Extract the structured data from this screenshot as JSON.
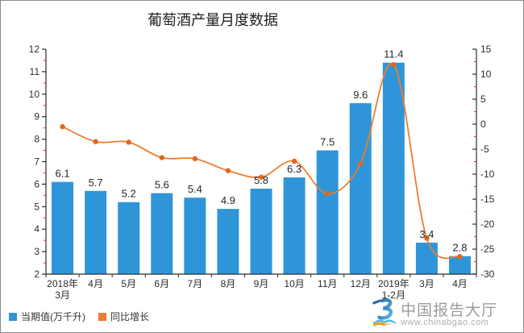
{
  "title": "葡萄酒产量月度数据",
  "legend": {
    "bar_label": "当期值(万千升)",
    "line_label": "同比增长"
  },
  "logo": {
    "name": "中国报告大厅",
    "url": "www.chinabgao.com",
    "icon": "chinabgao-book-monogram",
    "icon_colors": {
      "dark_blue": "#2e6aa8",
      "light_blue": "#55b7e6",
      "orange": "#f59d1e"
    }
  },
  "chart_data": {
    "type": "bar+line combo",
    "title": "葡萄酒产量月度数据",
    "categories": [
      [
        "2018年",
        "3月"
      ],
      [
        "4月"
      ],
      [
        "5月"
      ],
      [
        "6月"
      ],
      [
        "7月"
      ],
      [
        "8月"
      ],
      [
        "9月"
      ],
      [
        "10月"
      ],
      [
        "11月"
      ],
      [
        "12月"
      ],
      [
        "2019年",
        "1-2月"
      ],
      [
        "3月"
      ],
      [
        "4月"
      ]
    ],
    "series": [
      {
        "name": "当期值(万千升)",
        "type": "bar",
        "axis": "left",
        "color": "#2E96D8",
        "values": [
          6.1,
          5.7,
          5.2,
          5.6,
          5.4,
          4.9,
          5.8,
          6.3,
          7.5,
          9.6,
          11.4,
          3.4,
          2.8
        ],
        "data_labels": [
          "6.1",
          "5.7",
          "5.2",
          "5.6",
          "5.4",
          "4.9",
          "5.8",
          "6.3",
          "7.5",
          "9.6",
          "11.4",
          "3.4",
          "2.8"
        ]
      },
      {
        "name": "同比增长",
        "type": "line",
        "axis": "right",
        "color": "#ED7D31",
        "marker_color": "#E2671C",
        "smoothed": true,
        "values": [
          -0.5,
          -3.5,
          -3.6,
          -6.7,
          -6.9,
          -9.3,
          -10.6,
          -7.4,
          -13.9,
          -7.9,
          11.9,
          -22.8,
          -26.5
        ]
      }
    ],
    "left_axis": {
      "min": 2,
      "max": 12,
      "ticks": [
        12,
        11,
        10,
        9,
        8,
        7,
        6,
        5,
        4,
        3,
        2
      ],
      "minor_step": 0.5
    },
    "right_axis": {
      "min": -30,
      "max": 15,
      "ticks": [
        15,
        10,
        5,
        0,
        -5,
        -10,
        -15,
        -20,
        -25,
        -30
      ],
      "minor_step": 2.5
    },
    "grid": false,
    "legend_position": "bottom-left",
    "axis_color": "#2b2b2b",
    "minor_tick_color": "#e03020",
    "label_color": "#2b2b2b"
  }
}
